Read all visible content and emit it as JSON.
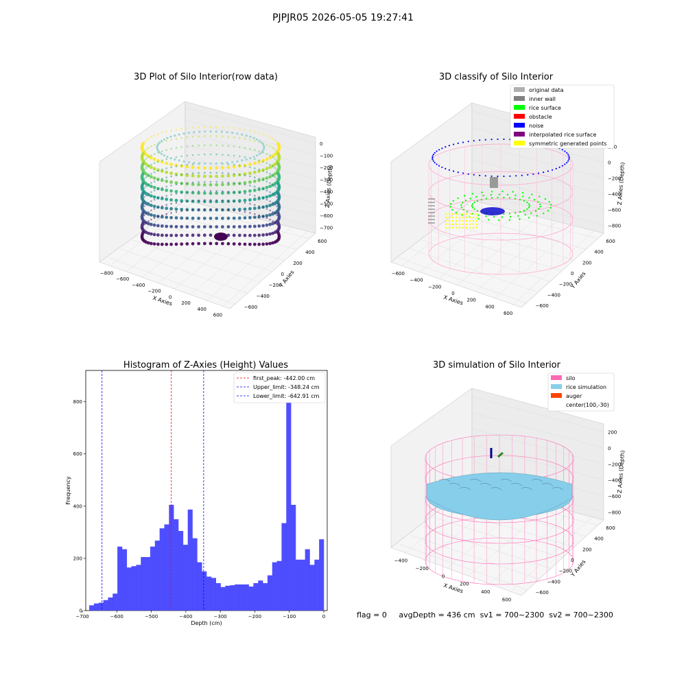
{
  "suptitle": "PJPJR05 2026-05-05 19:27:41",
  "footer": {
    "flag": "flag = 0",
    "avg_depth": "avgDepth = 436 cm",
    "sv1": "sv1 = 700~2300",
    "sv2": "sv2 = 700~2300"
  },
  "chart_data": [
    {
      "type": "scatter3d",
      "title": "3D Plot of Silo Interior(row data)",
      "xlabel": "X Axies",
      "ylabel": "Y Axies",
      "zlabel": "Z Axies (Depth)",
      "xticks": [
        "−800",
        "−600",
        "−400",
        "−200",
        "0",
        "200",
        "400",
        "600"
      ],
      "yticks": [
        "−600",
        "−400",
        "−200",
        "0",
        "200",
        "400",
        "600"
      ],
      "zticks": [
        "0",
        "−100",
        "−200",
        "−300",
        "−400",
        "−500",
        "−600",
        "−700"
      ],
      "colormap": "viridis"
    },
    {
      "type": "scatter3d",
      "title": "3D classify of Silo Interior",
      "xlabel": "X Axies",
      "ylabel": "Y Axies",
      "zlabel": "Z Axies (Depth)",
      "xticks": [
        "−600",
        "−400",
        "−200",
        "0",
        "200",
        "400",
        "600"
      ],
      "yticks": [
        "−600",
        "−400",
        "−200",
        "0",
        "200",
        "400",
        "600"
      ],
      "zticks": [
        "200",
        "0",
        "−200",
        "−400",
        "−600",
        "−800"
      ],
      "legend": [
        {
          "label": "original data",
          "color": "#b0b0b0"
        },
        {
          "label": "inner wall",
          "color": "#808080"
        },
        {
          "label": "rice surface",
          "color": "#00ff00"
        },
        {
          "label": "obstacle",
          "color": "#ff0000"
        },
        {
          "label": "noise",
          "color": "#0000ff"
        },
        {
          "label": "interpolated rice surface",
          "color": "#800080"
        },
        {
          "label": "symmetric generated points",
          "color": "#ffff00"
        }
      ]
    },
    {
      "type": "bar",
      "title": "Histogram of Z-Axies (Height) Values",
      "xlabel": "Depth (cm)",
      "ylabel": "Frequency",
      "xlim": [
        -700,
        0
      ],
      "ylim": [
        0,
        920
      ],
      "xticks": [
        "−700",
        "−600",
        "−500",
        "−400",
        "−300",
        "−200",
        "−100",
        "0"
      ],
      "yticks": [
        "0",
        "200",
        "400",
        "600",
        "800"
      ],
      "bar_color": "#4444ff",
      "bins": {
        "start": -680,
        "width": 13.6,
        "values": [
          20,
          27,
          30,
          40,
          50,
          65,
          245,
          235,
          165,
          170,
          175,
          205,
          205,
          245,
          268,
          315,
          330,
          405,
          350,
          305,
          252,
          387,
          277,
          185,
          150,
          130,
          125,
          105,
          90,
          95,
          97,
          100,
          100,
          100,
          92,
          105,
          115,
          105,
          135,
          185,
          190,
          335,
          870,
          405,
          195,
          195,
          235,
          175,
          195,
          273
        ]
      },
      "vlines": [
        {
          "label": "first_peak: -442.00 cm",
          "x": -442.0,
          "color": "#ff0000"
        },
        {
          "label": "Upper_limit: -348.24 cm",
          "x": -348.24,
          "color": "#0000ff"
        },
        {
          "label": "Lower_limit: -642.91 cm",
          "x": -642.91,
          "color": "#0000ff"
        }
      ]
    },
    {
      "type": "surface3d",
      "title": "3D simulation of Silo Interior",
      "xlabel": "X Axies",
      "ylabel": "Y Axies",
      "zlabel": "Z Axies (Depth)",
      "xticks": [
        "−400",
        "−200",
        "0",
        "200",
        "400",
        "600"
      ],
      "yticks": [
        "−600",
        "−400",
        "−200",
        "0",
        "200",
        "400",
        "600"
      ],
      "zticks": [
        "200",
        "0",
        "−200",
        "−400",
        "−600",
        "−800"
      ],
      "legend": [
        {
          "label": "silo",
          "color": "#ff69b4"
        },
        {
          "label": "rice simulation",
          "color": "#87ceeb"
        },
        {
          "label": "auger",
          "color": "#ff4500"
        },
        {
          "label": "center(100,-30)",
          "color": ""
        }
      ]
    }
  ]
}
